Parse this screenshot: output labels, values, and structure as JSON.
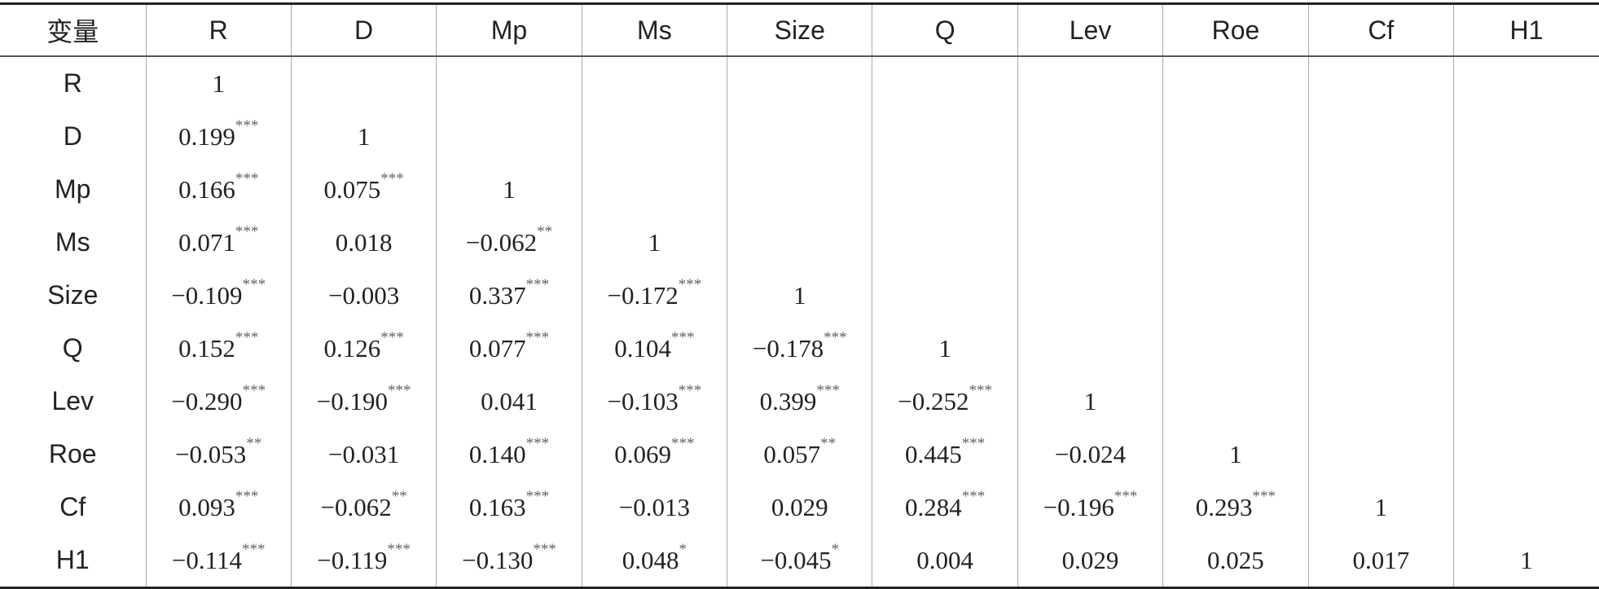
{
  "header": {
    "columns": [
      "变量",
      "R",
      "D",
      "Mp",
      "Ms",
      "Size",
      "Q",
      "Lev",
      "Roe",
      "Cf",
      "H1"
    ]
  },
  "rows": [
    {
      "label": "R",
      "cells": [
        {
          "text": "1"
        }
      ]
    },
    {
      "label": "D",
      "cells": [
        {
          "text": "0.199",
          "sig": "***"
        },
        {
          "text": "1"
        }
      ]
    },
    {
      "label": "Mp",
      "cells": [
        {
          "text": "0.166",
          "sig": "***"
        },
        {
          "text": "0.075",
          "sig": "***"
        },
        {
          "text": "1"
        }
      ]
    },
    {
      "label": "Ms",
      "cells": [
        {
          "text": "0.071",
          "sig": "***"
        },
        {
          "text": "0.018"
        },
        {
          "text": "−0.062",
          "sig": "**"
        },
        {
          "text": "1"
        }
      ]
    },
    {
      "label": "Size",
      "cells": [
        {
          "text": "−0.109",
          "sig": "***"
        },
        {
          "text": "−0.003"
        },
        {
          "text": "0.337",
          "sig": "***"
        },
        {
          "text": "−0.172",
          "sig": "***"
        },
        {
          "text": "1"
        }
      ]
    },
    {
      "label": "Q",
      "cells": [
        {
          "text": "0.152",
          "sig": "***"
        },
        {
          "text": "0.126",
          "sig": "***"
        },
        {
          "text": "0.077",
          "sig": "***"
        },
        {
          "text": "0.104",
          "sig": "***"
        },
        {
          "text": "−0.178",
          "sig": "***"
        },
        {
          "text": "1"
        }
      ]
    },
    {
      "label": "Lev",
      "cells": [
        {
          "text": "−0.290",
          "sig": "***"
        },
        {
          "text": "−0.190",
          "sig": "***"
        },
        {
          "text": "0.041"
        },
        {
          "text": "−0.103",
          "sig": "***"
        },
        {
          "text": "0.399",
          "sig": "***"
        },
        {
          "text": "−0.252",
          "sig": "***"
        },
        {
          "text": "1"
        }
      ]
    },
    {
      "label": "Roe",
      "cells": [
        {
          "text": "−0.053",
          "sig": "**"
        },
        {
          "text": "−0.031"
        },
        {
          "text": "0.140",
          "sig": "***"
        },
        {
          "text": "0.069",
          "sig": "***"
        },
        {
          "text": "0.057",
          "sig": "**"
        },
        {
          "text": "0.445",
          "sig": "***"
        },
        {
          "text": "−0.024"
        },
        {
          "text": "1"
        }
      ]
    },
    {
      "label": "Cf",
      "cells": [
        {
          "text": "0.093",
          "sig": "***"
        },
        {
          "text": "−0.062",
          "sig": "**"
        },
        {
          "text": "0.163",
          "sig": "***"
        },
        {
          "text": "−0.013"
        },
        {
          "text": "0.029"
        },
        {
          "text": "0.284",
          "sig": "***"
        },
        {
          "text": "−0.196",
          "sig": "***"
        },
        {
          "text": "0.293",
          "sig": "***"
        },
        {
          "text": "1"
        }
      ]
    },
    {
      "label": "H1",
      "cells": [
        {
          "text": "−0.114",
          "sig": "***"
        },
        {
          "text": "−0.119",
          "sig": "***"
        },
        {
          "text": "−0.130",
          "sig": "***"
        },
        {
          "text": "0.048",
          "sig": "*"
        },
        {
          "text": "−0.045",
          "sig": "*"
        },
        {
          "text": "0.004"
        },
        {
          "text": "0.029"
        },
        {
          "text": "0.025"
        },
        {
          "text": "0.017"
        },
        {
          "text": "1"
        }
      ]
    }
  ]
}
